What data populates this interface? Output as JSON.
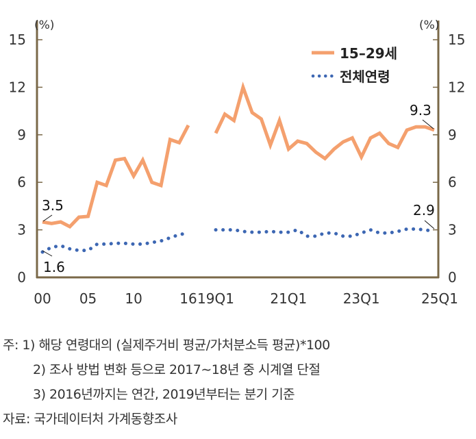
{
  "chart_data": {
    "type": "line",
    "unit_left": "(%)",
    "unit_right": "(%)",
    "ylim": [
      0,
      15
    ],
    "yticks": [
      0,
      3,
      6,
      9,
      12,
      15
    ],
    "xtick_labels": [
      "00",
      "05",
      "10",
      "16",
      "19Q1",
      "21Q1",
      "23Q1",
      "25Q1"
    ],
    "segments": [
      {
        "x": [
          "2000",
          "2001",
          "2002",
          "2003",
          "2004",
          "2005",
          "2006",
          "2007",
          "2008",
          "2009",
          "2010",
          "2011",
          "2012",
          "2013",
          "2014",
          "2015",
          "2016"
        ],
        "series": [
          {
            "name": "15–29세",
            "values": [
              3.5,
              3.4,
              3.5,
              3.2,
              3.8,
              3.85,
              6.0,
              5.8,
              7.4,
              7.5,
              6.4,
              7.4,
              6.0,
              5.8,
              8.7,
              8.5,
              9.6
            ]
          },
          {
            "name": "전체연령",
            "values": [
              1.6,
              1.9,
              2.0,
              1.8,
              1.7,
              1.7,
              2.1,
              2.1,
              2.15,
              2.15,
              2.1,
              2.1,
              2.2,
              2.3,
              2.5,
              2.7,
              2.8
            ]
          }
        ]
      },
      {
        "x": [
          "2019Q1",
          "2019Q2",
          "2019Q3",
          "2019Q4",
          "2020Q1",
          "2020Q2",
          "2020Q3",
          "2020Q4",
          "2021Q1",
          "2021Q2",
          "2021Q3",
          "2021Q4",
          "2022Q1",
          "2022Q2",
          "2022Q3",
          "2022Q4",
          "2023Q1",
          "2023Q2",
          "2023Q3",
          "2023Q4",
          "2024Q1",
          "2024Q2",
          "2024Q3",
          "2024Q4",
          "2025Q1"
        ],
        "series": [
          {
            "name": "15–29세",
            "values": [
              9.1,
              10.3,
              9.9,
              12.0,
              10.4,
              10.0,
              8.35,
              9.9,
              8.1,
              8.6,
              8.45,
              7.9,
              7.5,
              8.1,
              8.55,
              8.8,
              7.6,
              8.8,
              9.1,
              8.45,
              8.2,
              9.3,
              9.5,
              9.5,
              9.3
            ]
          },
          {
            "name": "전체연령",
            "values": [
              3.0,
              3.0,
              3.0,
              2.9,
              2.85,
              2.85,
              2.9,
              2.85,
              2.85,
              3.0,
              2.6,
              2.6,
              2.8,
              2.8,
              2.6,
              2.6,
              2.8,
              3.0,
              2.8,
              2.8,
              2.9,
              3.05,
              3.05,
              3.0,
              2.9
            ]
          }
        ]
      }
    ],
    "annotations": [
      "3.5",
      "1.6",
      "9.3",
      "2.9"
    ],
    "colors": {
      "youth": "#f4a06e",
      "all": "#3d67b3",
      "axis": "#7a6848"
    },
    "legend_placement": "top-right"
  },
  "notes": [
    "주: 1) 해당 연령대의 (실제주거비 평균/가처분소득 평균)*100",
    "2) 조사 방법 변화 등으로 2017∼18년 중 시계열 단절",
    "3) 2016년까지는 연간, 2019년부터는 분기 기준",
    "자료: 국가데이터처 가계동향조사"
  ]
}
